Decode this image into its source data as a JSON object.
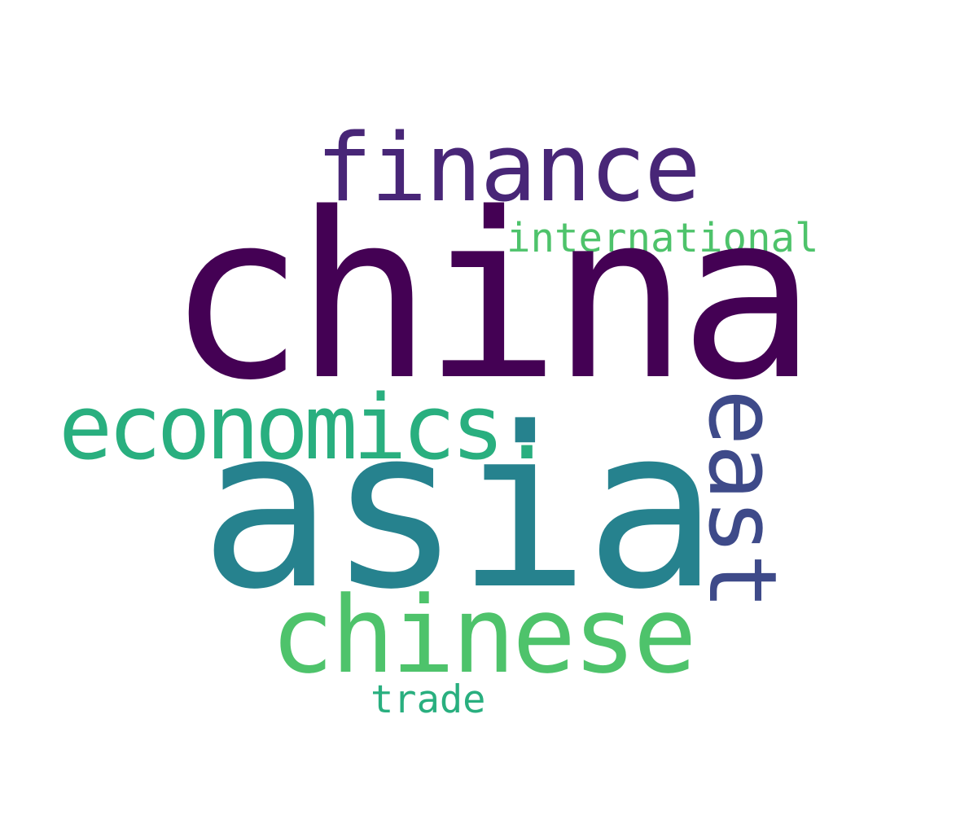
{
  "word_cloud": {
    "words": {
      "china": "china",
      "asia": "asia",
      "finance": "finance",
      "economics": "economics.",
      "chinese": "chinese",
      "east": "east",
      "international": "international",
      "trade": "trade"
    },
    "colors": {
      "china": "#440154",
      "asia": "#26828e",
      "finance": "#482677",
      "economics": "#29af7f",
      "chinese": "#4ec36b",
      "east": "#3e4a89",
      "international": "#4ec36b",
      "trade": "#29af7f"
    },
    "background": "#ffffff"
  }
}
